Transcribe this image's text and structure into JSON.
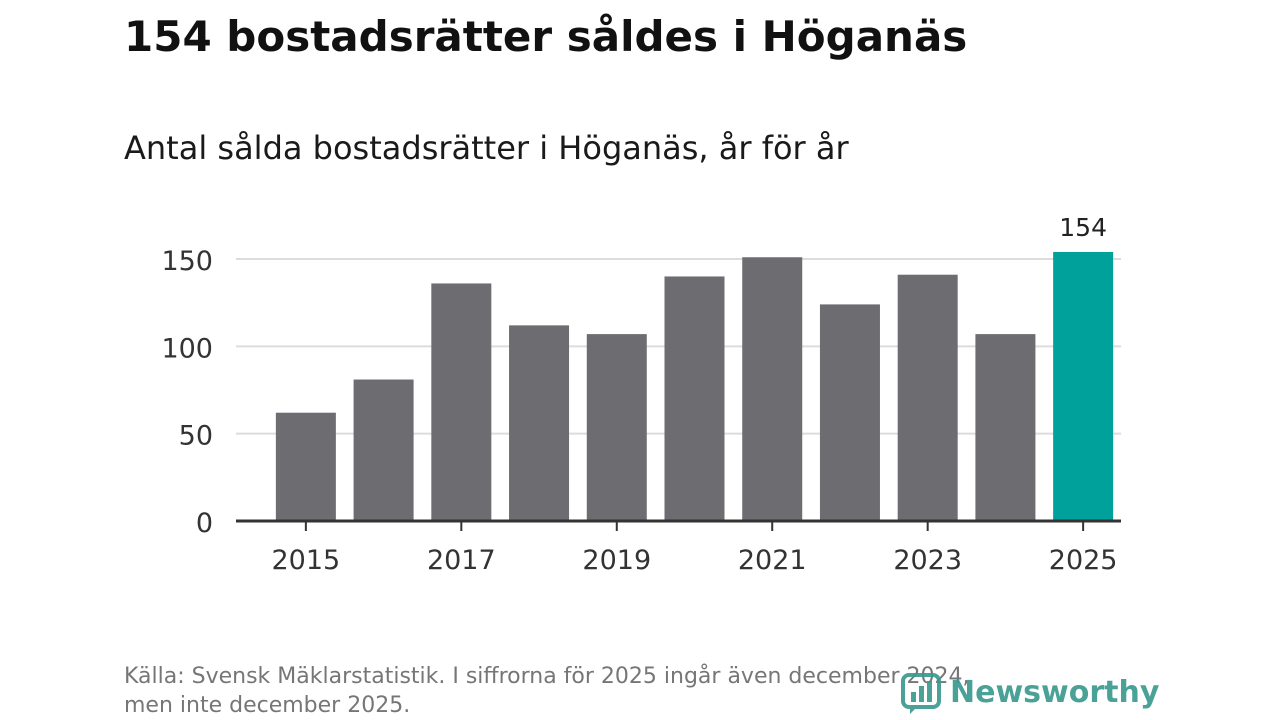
{
  "header": {
    "title": "154 bostadsrätter såldes i Höganäs",
    "subtitle": "Antal sålda bostadsrätter i Höganäs, år för år"
  },
  "footer": {
    "source_line1": "Källa: Svensk Mäklarstatistik. I siffrorna för 2025 ingår även december 2024,",
    "source_line2": "men inte december 2025.",
    "brand": "Newsworthy"
  },
  "colors": {
    "bar": "#6d6c71",
    "highlight": "#00a19a",
    "grid": "#dcdcdc",
    "axis": "#333333",
    "tick_text": "#333333",
    "brand": "#3a9a8f"
  },
  "chart_data": {
    "type": "bar",
    "title": "Antal sålda bostadsrätter i Höganäs, år för år",
    "xlabel": "",
    "ylabel": "",
    "categories": [
      "2015",
      "2016",
      "2017",
      "2018",
      "2019",
      "2020",
      "2021",
      "2022",
      "2023",
      "2024",
      "2025"
    ],
    "values": [
      62,
      81,
      136,
      112,
      107,
      140,
      151,
      124,
      141,
      107,
      154
    ],
    "highlight_index": 10,
    "value_labels": [
      {
        "index": 10,
        "text": "154"
      }
    ],
    "x_tick_labels": [
      "2015",
      "2017",
      "2019",
      "2021",
      "2023",
      "2025"
    ],
    "y_ticks": [
      0,
      50,
      100,
      150
    ],
    "ylim": [
      0,
      154
    ],
    "grid": true
  }
}
